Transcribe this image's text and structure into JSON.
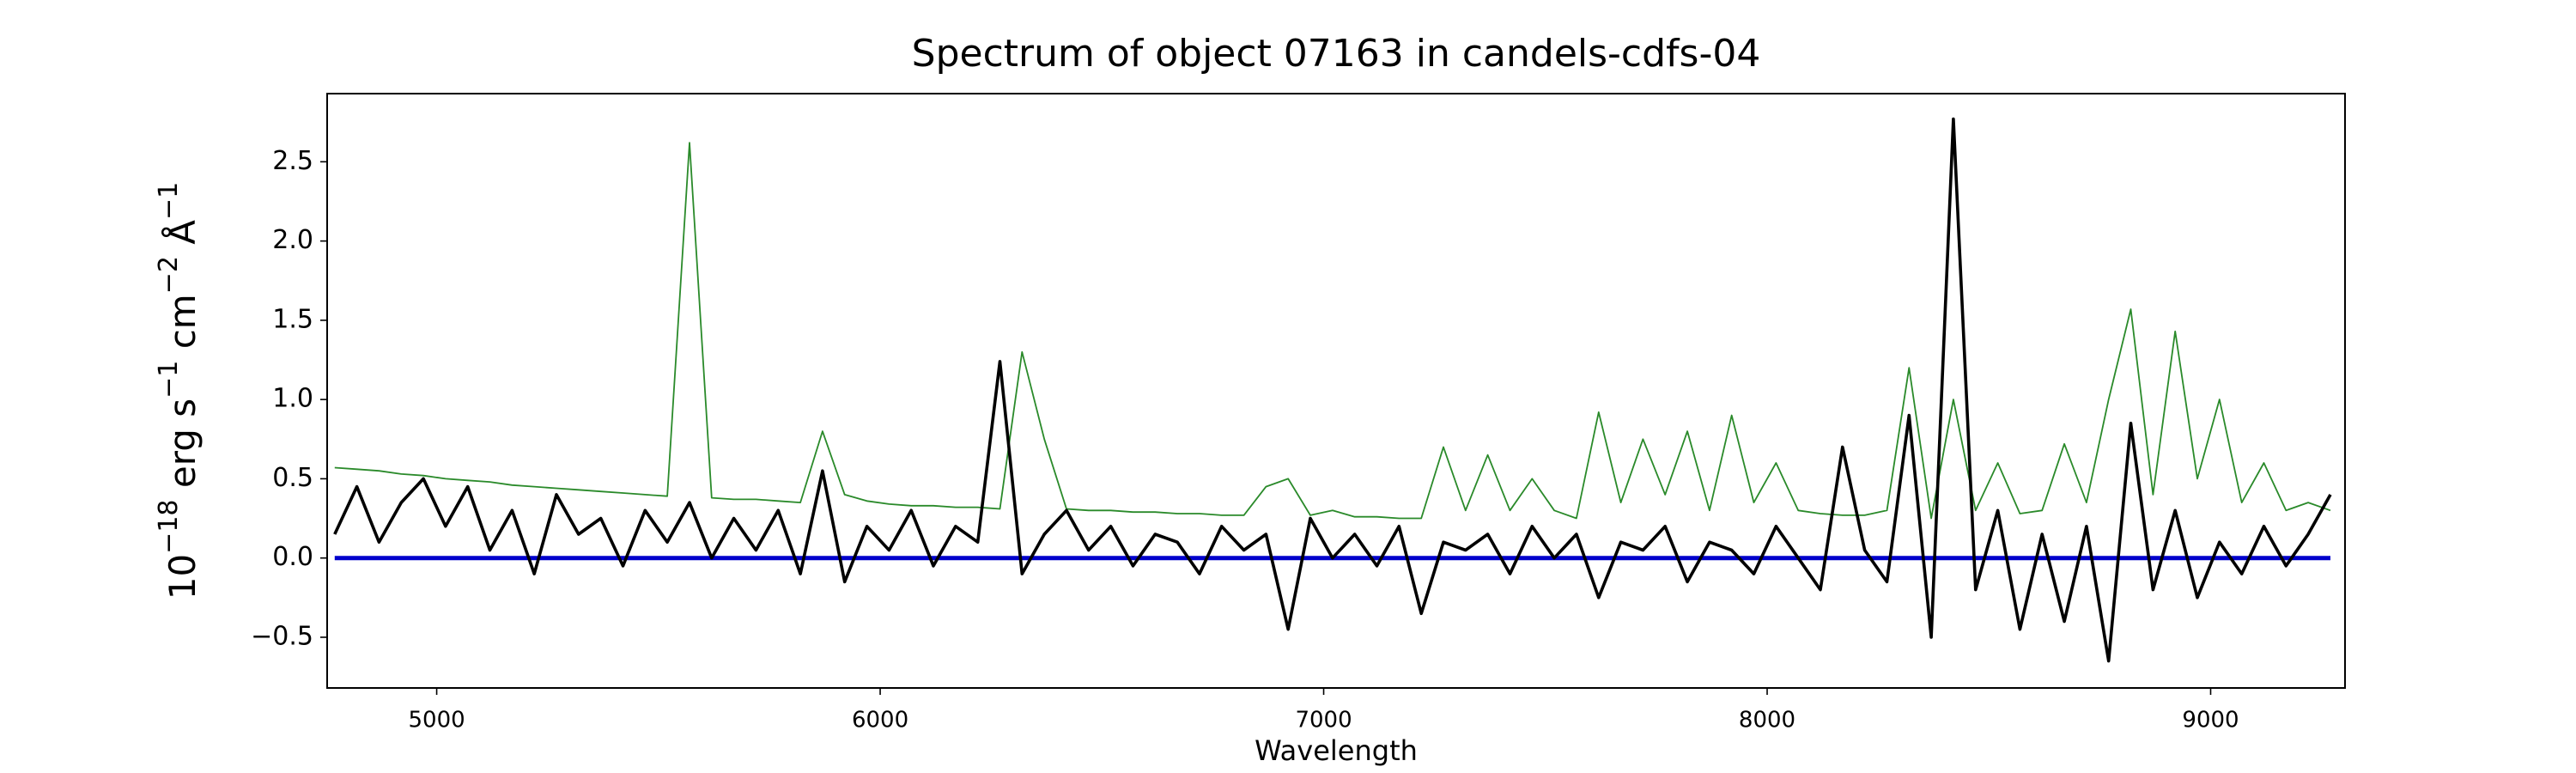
{
  "chart_data": {
    "type": "line",
    "title": "Spectrum of object 07163 in candels-cdfs-04",
    "xlabel": "Wavelength",
    "ylabel": [
      "10",
      "−18",
      " erg s",
      "−1",
      " cm",
      "−2",
      " Å",
      "−1"
    ],
    "xlim": [
      4753,
      9303
    ],
    "ylim": [
      -0.82,
      2.93
    ],
    "xticks": [
      5000,
      6000,
      7000,
      8000,
      9000
    ],
    "yticks": [
      {
        "value": -0.5,
        "label": "−0.5"
      },
      {
        "value": 0,
        "label": "0.0"
      },
      {
        "value": 0.5,
        "label": "0.5"
      },
      {
        "value": 1,
        "label": "1.0"
      },
      {
        "value": 1.5,
        "label": "1.5"
      },
      {
        "value": 2,
        "label": "2.0"
      },
      {
        "value": 2.5,
        "label": "2.5"
      }
    ],
    "x": [
      4770,
      4820,
      4870,
      4920,
      4970,
      5020,
      5070,
      5120,
      5170,
      5220,
      5270,
      5320,
      5370,
      5420,
      5470,
      5520,
      5570,
      5620,
      5670,
      5720,
      5770,
      5820,
      5870,
      5920,
      5970,
      6020,
      6070,
      6120,
      6170,
      6220,
      6270,
      6320,
      6370,
      6420,
      6470,
      6520,
      6570,
      6620,
      6670,
      6720,
      6770,
      6820,
      6870,
      6920,
      6970,
      7020,
      7070,
      7120,
      7170,
      7220,
      7270,
      7320,
      7370,
      7420,
      7470,
      7520,
      7570,
      7620,
      7670,
      7720,
      7770,
      7820,
      7870,
      7920,
      7970,
      8020,
      8070,
      8120,
      8170,
      8220,
      8270,
      8320,
      8370,
      8420,
      8470,
      8520,
      8570,
      8620,
      8670,
      8720,
      8770,
      8820,
      8870,
      8920,
      8970,
      9020,
      9070,
      9120,
      9170,
      9220,
      9270
    ],
    "series": [
      {
        "color": "#2a8a2a",
        "width": 1.8,
        "values": [
          0.57,
          0.56,
          0.55,
          0.53,
          0.52,
          0.5,
          0.49,
          0.48,
          0.46,
          0.45,
          0.44,
          0.43,
          0.42,
          0.41,
          0.4,
          0.39,
          2.62,
          0.38,
          0.37,
          0.37,
          0.36,
          0.35,
          0.8,
          0.4,
          0.36,
          0.34,
          0.33,
          0.33,
          0.32,
          0.32,
          0.31,
          1.3,
          0.75,
          0.31,
          0.3,
          0.3,
          0.29,
          0.29,
          0.28,
          0.28,
          0.27,
          0.27,
          0.45,
          0.5,
          0.27,
          0.3,
          0.26,
          0.26,
          0.25,
          0.25,
          0.7,
          0.3,
          0.65,
          0.3,
          0.5,
          0.3,
          0.25,
          0.92,
          0.35,
          0.75,
          0.4,
          0.8,
          0.3,
          0.9,
          0.35,
          0.6,
          0.3,
          0.28,
          0.27,
          0.27,
          0.3,
          1.2,
          0.25,
          1.0,
          0.3,
          0.6,
          0.28,
          0.3,
          0.72,
          0.35,
          1.0,
          1.57,
          0.4,
          1.43,
          0.5,
          1.0,
          0.35,
          0.6,
          0.3,
          0.35,
          0.3
        ]
      },
      {
        "color": "#0000cc",
        "width": 5,
        "values": [
          0,
          0,
          0,
          0,
          0,
          0,
          0,
          0,
          0,
          0,
          0,
          0,
          0,
          0,
          0,
          0,
          0,
          0,
          0,
          0,
          0,
          0,
          0,
          0,
          0,
          0,
          0,
          0,
          0,
          0,
          0,
          0,
          0,
          0,
          0,
          0,
          0,
          0,
          0,
          0,
          0,
          0,
          0,
          0,
          0,
          0,
          0,
          0,
          0,
          0,
          0,
          0,
          0,
          0,
          0,
          0,
          0,
          0,
          0,
          0,
          0,
          0,
          0,
          0,
          0,
          0,
          0,
          0,
          0,
          0,
          0,
          0,
          0,
          0,
          0,
          0,
          0,
          0,
          0,
          0,
          0,
          0,
          0,
          0,
          0,
          0,
          0,
          0,
          0,
          0,
          0
        ]
      },
      {
        "color": "#000000",
        "width": 3.6,
        "values": [
          0.15,
          0.45,
          0.1,
          0.35,
          0.5,
          0.2,
          0.45,
          0.05,
          0.3,
          -0.1,
          0.4,
          0.15,
          0.25,
          -0.05,
          0.3,
          0.1,
          0.35,
          0.0,
          0.25,
          0.05,
          0.3,
          -0.1,
          0.55,
          -0.15,
          0.2,
          0.05,
          0.3,
          -0.05,
          0.2,
          0.1,
          1.24,
          -0.1,
          0.15,
          0.3,
          0.05,
          0.2,
          -0.05,
          0.15,
          0.1,
          -0.1,
          0.2,
          0.05,
          0.15,
          -0.45,
          0.25,
          0.0,
          0.15,
          -0.05,
          0.2,
          -0.35,
          0.1,
          0.05,
          0.15,
          -0.1,
          0.2,
          0.0,
          0.15,
          -0.25,
          0.1,
          0.05,
          0.2,
          -0.15,
          0.1,
          0.05,
          -0.1,
          0.2,
          0.0,
          -0.2,
          0.7,
          0.05,
          -0.15,
          0.9,
          -0.5,
          2.77,
          -0.2,
          0.3,
          -0.45,
          0.15,
          -0.4,
          0.2,
          -0.65,
          0.85,
          -0.2,
          0.3,
          -0.25,
          0.1,
          -0.1,
          0.2,
          -0.05,
          0.15,
          0.4
        ]
      }
    ]
  }
}
